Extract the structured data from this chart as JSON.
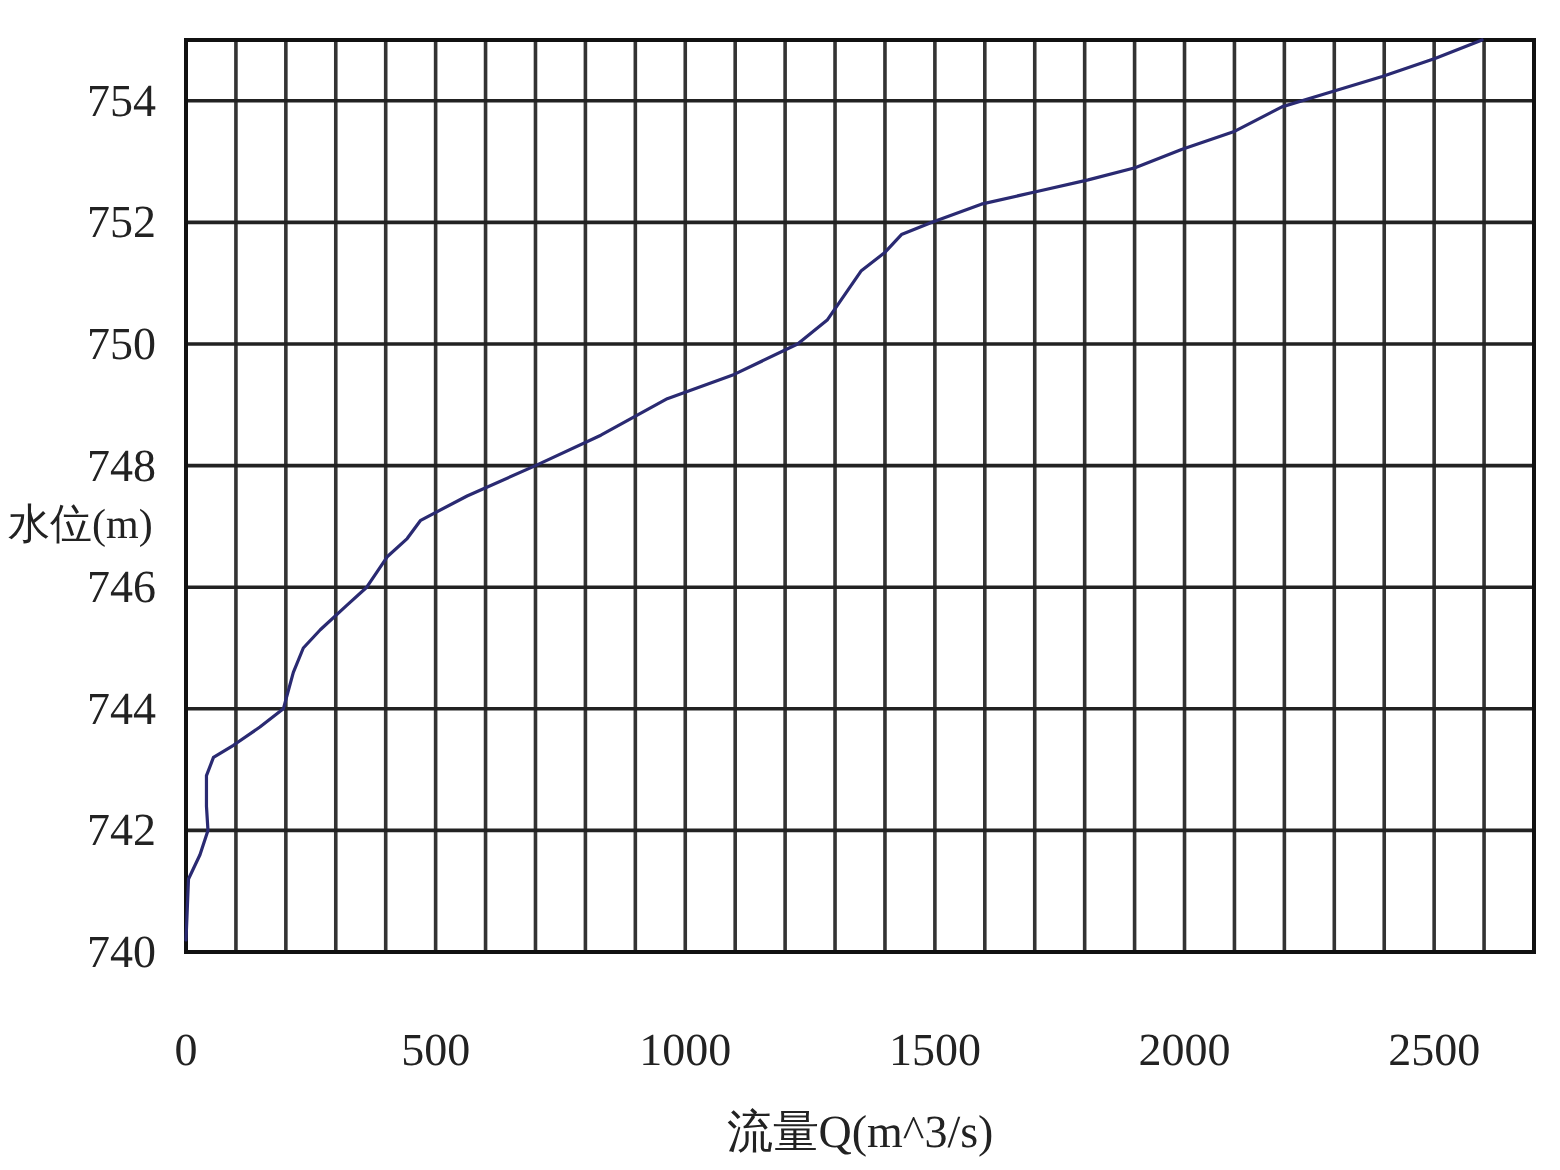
{
  "chart_data": {
    "type": "line",
    "xlabel": "流量Q(m^3/s)",
    "ylabel": "水位(m)",
    "x": [
      0,
      5,
      28,
      44,
      41,
      41,
      55,
      95,
      148,
      195,
      215,
      235,
      269,
      322,
      362,
      403,
      443,
      470,
      563,
      700,
      831,
      964,
      1098,
      1225,
      1285,
      1352,
      1399,
      1433,
      1493,
      1593,
      1700,
      1807,
      1901,
      1994,
      2101,
      2195,
      2275,
      2396,
      2503,
      2596
    ],
    "values": [
      740.2,
      741.2,
      741.6,
      742.0,
      742.4,
      742.9,
      743.2,
      743.4,
      743.7,
      744.0,
      744.6,
      745.0,
      745.3,
      745.7,
      746.0,
      746.5,
      746.8,
      747.1,
      747.5,
      748.0,
      748.5,
      749.1,
      749.5,
      750.0,
      750.4,
      751.2,
      751.5,
      751.8,
      752.0,
      752.3,
      752.5,
      752.7,
      752.9,
      753.2,
      753.5,
      753.9,
      754.1,
      754.4,
      754.7,
      755.0
    ],
    "color": "#2a2a72",
    "xlim": [
      0,
      2700
    ],
    "ylim": [
      740,
      755
    ],
    "xticks": [
      0,
      {
        "value": 100,
        "label": null
      },
      {
        "value": 200,
        "label": null
      },
      {
        "value": 300,
        "label": null
      },
      {
        "value": 400,
        "label": null
      },
      500,
      {
        "value": 600,
        "label": null
      },
      {
        "value": 700,
        "label": null
      },
      {
        "value": 800,
        "label": null
      },
      {
        "value": 900,
        "label": null
      },
      1000,
      {
        "value": 1100,
        "label": null
      },
      {
        "value": 1200,
        "label": null
      },
      {
        "value": 1300,
        "label": null
      },
      {
        "value": 1400,
        "label": null
      },
      1500,
      {
        "value": 1600,
        "label": null
      },
      {
        "value": 1700,
        "label": null
      },
      {
        "value": 1800,
        "label": null
      },
      {
        "value": 1900,
        "label": null
      },
      2000,
      {
        "value": 2100,
        "label": null
      },
      {
        "value": 2200,
        "label": null
      },
      {
        "value": 2300,
        "label": null
      },
      {
        "value": 2400,
        "label": null
      },
      2500,
      {
        "value": 2600,
        "label": null
      }
    ],
    "yticks": [
      740,
      742,
      744,
      746,
      748,
      750,
      752,
      754
    ],
    "grid": true
  }
}
